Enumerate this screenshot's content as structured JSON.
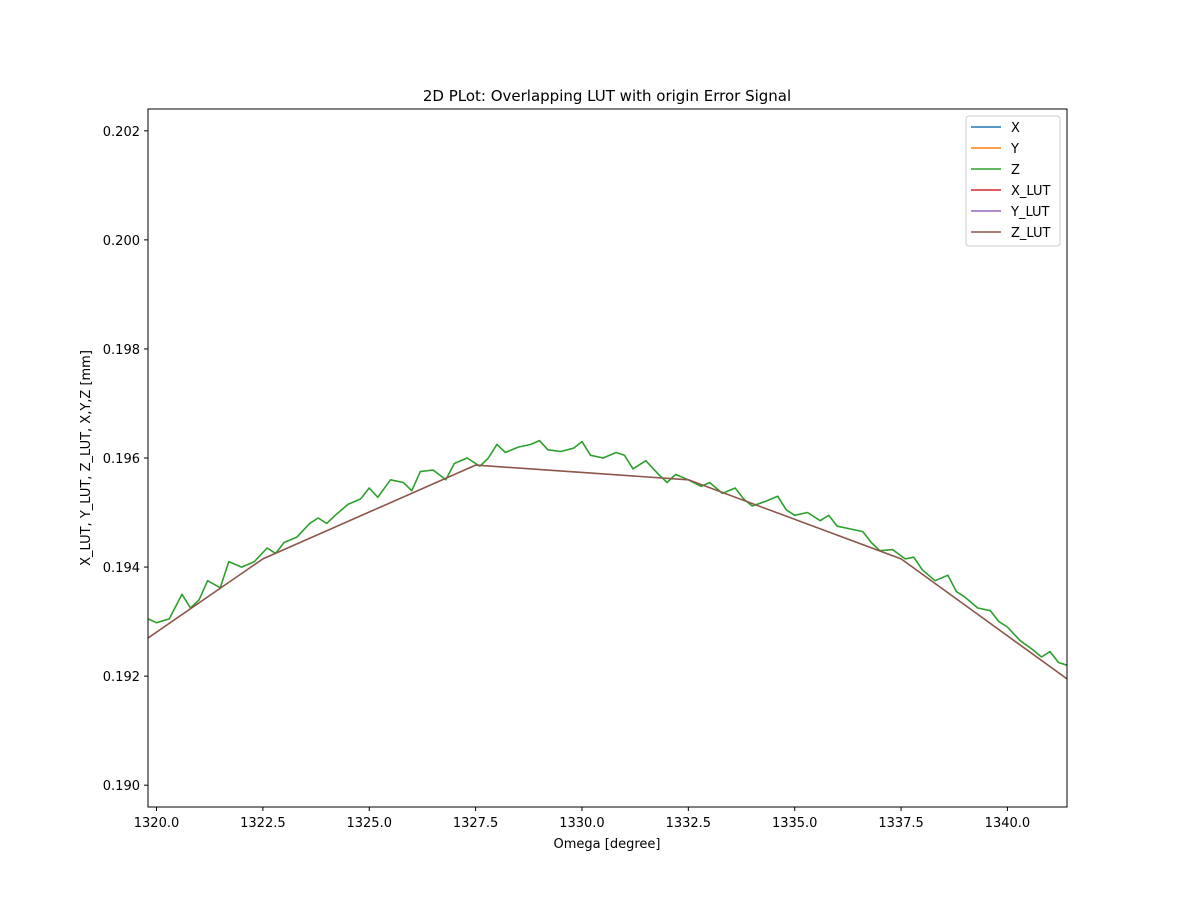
{
  "chart_data": {
    "type": "line",
    "title": "2D PLot: Overlapping LUT with origin Error Signal",
    "xlabel": "Omega [degree]",
    "ylabel": "X_LUT, Y_LUT, Z_LUT, X,Y,Z [mm]",
    "xlim": [
      1319.8,
      1341.4
    ],
    "ylim": [
      0.1896,
      0.2024
    ],
    "xticks": [
      1320.0,
      1322.5,
      1325.0,
      1327.5,
      1330.0,
      1332.5,
      1335.0,
      1337.5,
      1340.0
    ],
    "xtick_labels": [
      "1320.0",
      "1322.5",
      "1325.0",
      "1327.5",
      "1330.0",
      "1332.5",
      "1335.0",
      "1337.5",
      "1340.0"
    ],
    "yticks": [
      0.19,
      0.192,
      0.194,
      0.196,
      0.198,
      0.2,
      0.202
    ],
    "ytick_labels": [
      "0.190",
      "0.192",
      "0.194",
      "0.196",
      "0.198",
      "0.200",
      "0.202"
    ],
    "grid": false,
    "legend_position": "upper right",
    "colors": {
      "X": "#1f77b4",
      "Y": "#ff7f0e",
      "Z": "#2ca02c",
      "X_LUT": "#d62728",
      "Y_LUT": "#9467bd",
      "Z_LUT": "#8c564b"
    },
    "series": [
      {
        "name": "X",
        "x": [],
        "y": []
      },
      {
        "name": "Y",
        "x": [],
        "y": []
      },
      {
        "name": "Z",
        "x": [
          1319.8,
          1320.0,
          1320.3,
          1320.6,
          1320.8,
          1321.0,
          1321.2,
          1321.5,
          1321.7,
          1322.0,
          1322.3,
          1322.6,
          1322.8,
          1323.0,
          1323.3,
          1323.6,
          1323.8,
          1324.0,
          1324.2,
          1324.5,
          1324.8,
          1325.0,
          1325.2,
          1325.5,
          1325.8,
          1326.0,
          1326.2,
          1326.5,
          1326.8,
          1327.0,
          1327.3,
          1327.6,
          1327.8,
          1328.0,
          1328.2,
          1328.5,
          1328.8,
          1329.0,
          1329.2,
          1329.5,
          1329.8,
          1330.0,
          1330.2,
          1330.5,
          1330.8,
          1331.0,
          1331.2,
          1331.5,
          1331.8,
          1332.0,
          1332.2,
          1332.5,
          1332.8,
          1333.0,
          1333.3,
          1333.6,
          1333.8,
          1334.0,
          1334.3,
          1334.6,
          1334.8,
          1335.0,
          1335.3,
          1335.6,
          1335.8,
          1336.0,
          1336.3,
          1336.6,
          1336.8,
          1337.0,
          1337.3,
          1337.6,
          1337.8,
          1338.0,
          1338.3,
          1338.6,
          1338.8,
          1339.0,
          1339.3,
          1339.6,
          1339.8,
          1340.0,
          1340.3,
          1340.6,
          1340.8,
          1341.0,
          1341.2,
          1341.4
        ],
        "y": [
          0.19305,
          0.19298,
          0.19305,
          0.1935,
          0.19325,
          0.1934,
          0.19375,
          0.19362,
          0.1941,
          0.194,
          0.1941,
          0.19435,
          0.19425,
          0.19445,
          0.19455,
          0.1948,
          0.1949,
          0.1948,
          0.19495,
          0.19515,
          0.19525,
          0.19545,
          0.19528,
          0.1956,
          0.19555,
          0.1954,
          0.19575,
          0.19578,
          0.1956,
          0.1959,
          0.196,
          0.19585,
          0.196,
          0.19625,
          0.1961,
          0.1962,
          0.19625,
          0.19632,
          0.19615,
          0.19612,
          0.19618,
          0.1963,
          0.19605,
          0.196,
          0.1961,
          0.19605,
          0.1958,
          0.19595,
          0.1957,
          0.19555,
          0.1957,
          0.1956,
          0.19548,
          0.19555,
          0.19535,
          0.19545,
          0.19525,
          0.19512,
          0.1952,
          0.1953,
          0.19505,
          0.19495,
          0.195,
          0.19485,
          0.19495,
          0.19475,
          0.1947,
          0.19465,
          0.19445,
          0.1943,
          0.19432,
          0.19415,
          0.19418,
          0.19395,
          0.19375,
          0.19385,
          0.19355,
          0.19345,
          0.19325,
          0.1932,
          0.193,
          0.1929,
          0.19265,
          0.19248,
          0.19235,
          0.19245,
          0.19225,
          0.1922
        ]
      },
      {
        "name": "X_LUT",
        "x": [],
        "y": []
      },
      {
        "name": "Y_LUT",
        "x": [],
        "y": []
      },
      {
        "name": "Z_LUT",
        "x": [
          1319.8,
          1322.5,
          1327.5,
          1332.5,
          1337.5,
          1341.4
        ],
        "y": [
          0.1927,
          0.19415,
          0.19587,
          0.1956,
          0.19415,
          0.19195
        ]
      }
    ]
  }
}
